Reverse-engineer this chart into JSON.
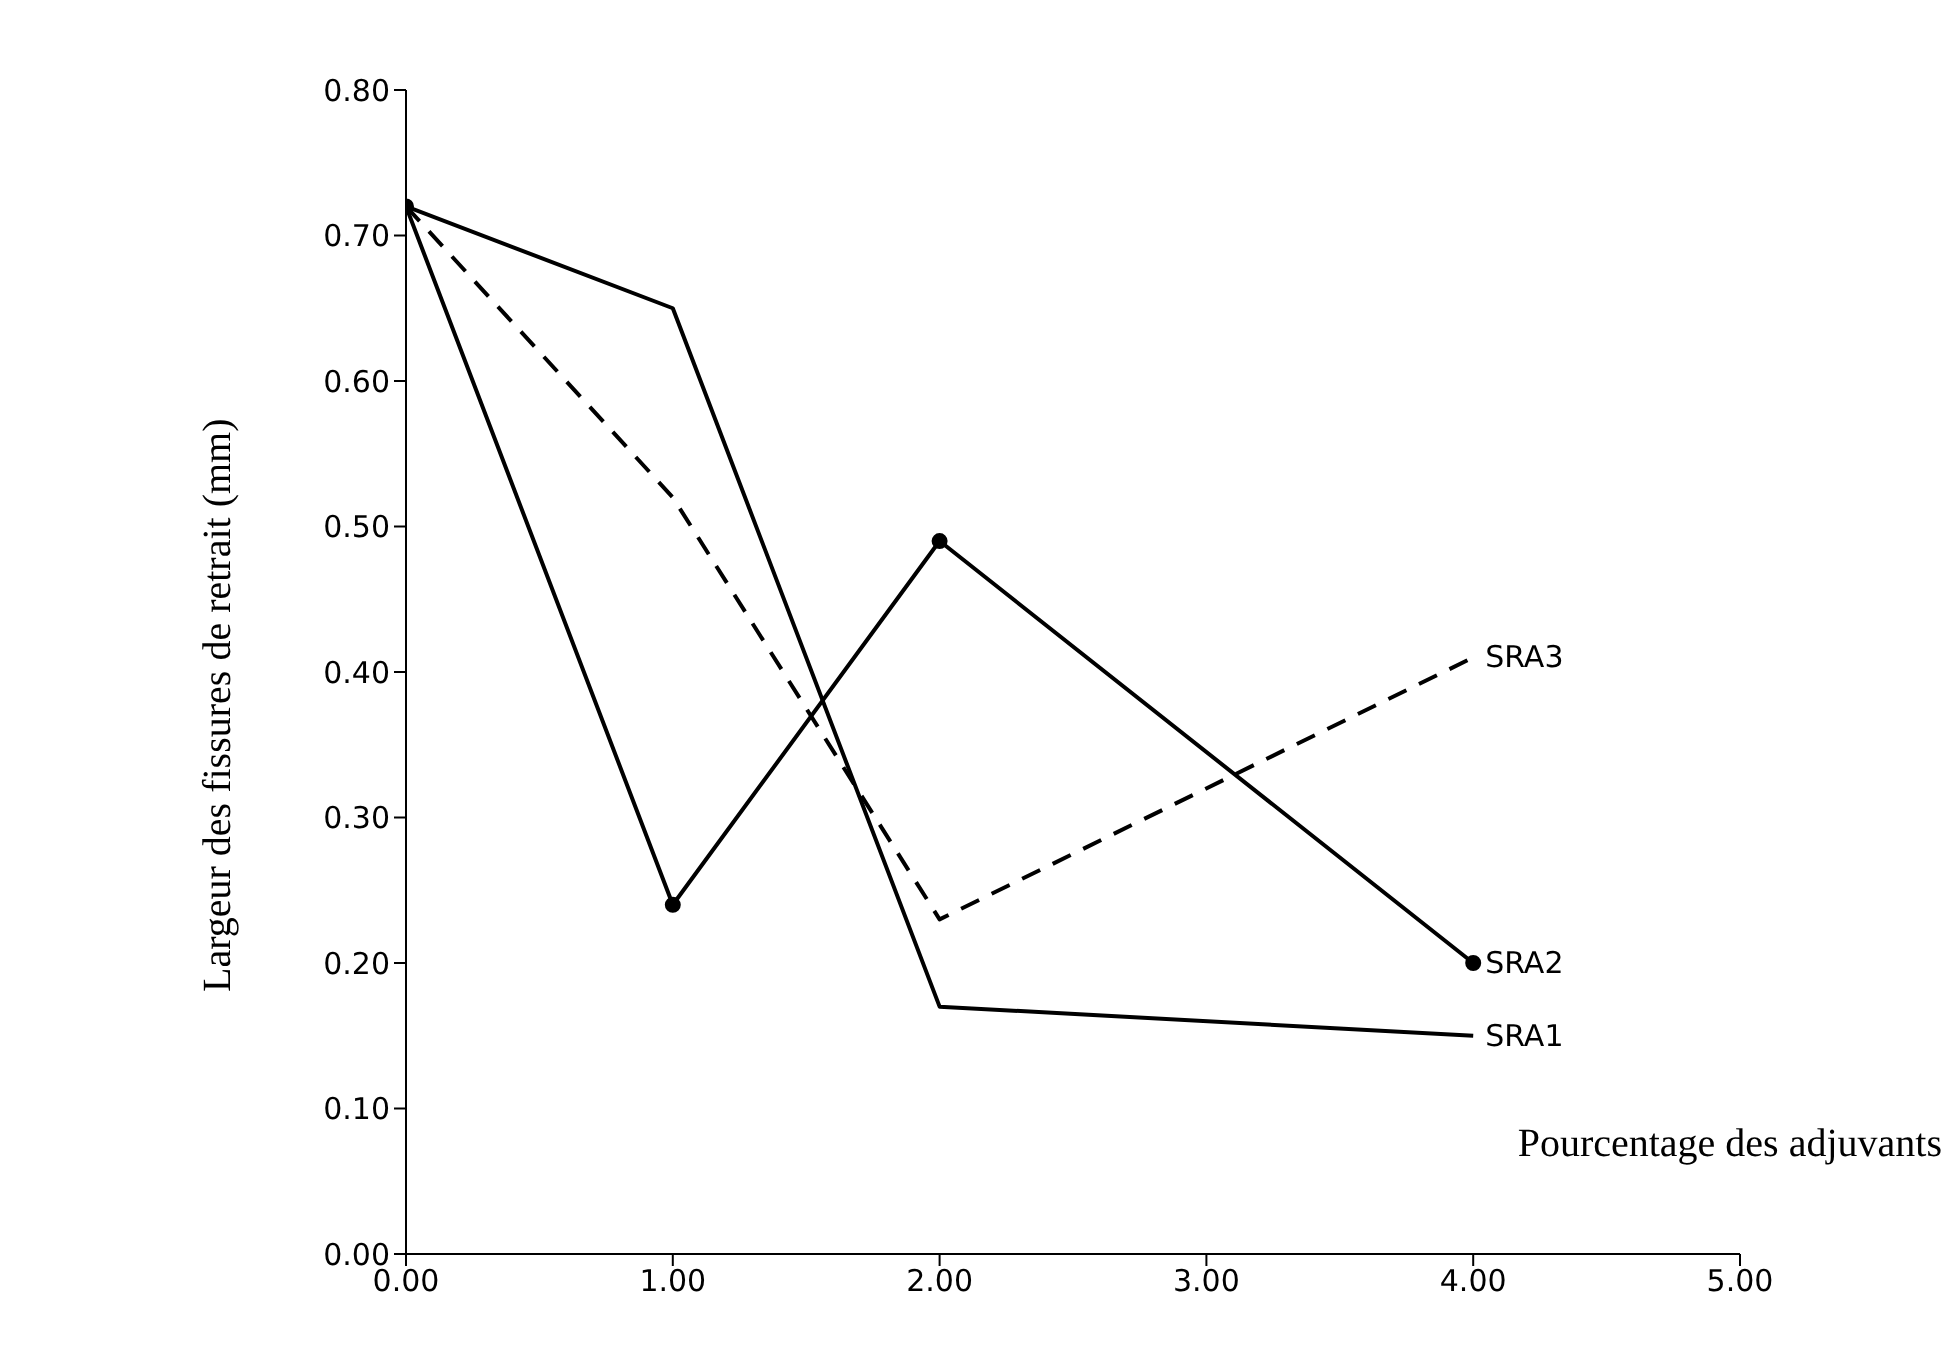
{
  "chart_data": {
    "type": "line",
    "xlabel": "Pourcentage des adjuvants",
    "ylabel": "Largeur des fissures de retrait (mm)",
    "x": [
      0,
      1,
      2,
      4
    ],
    "series": [
      {
        "name": "SRA1",
        "color": "#000000",
        "values": [
          0.72,
          0.65,
          0.17,
          0.15
        ],
        "line_style": "solid",
        "marker": "none"
      },
      {
        "name": "SRA2",
        "color": "#000000",
        "values": [
          0.72,
          0.24,
          0.49,
          0.2
        ],
        "line_style": "solid",
        "marker": "circle"
      },
      {
        "name": "SRA3",
        "color": "#000000",
        "values": [
          0.72,
          0.52,
          0.23,
          0.41
        ],
        "line_style": "dashed",
        "marker": "none"
      }
    ],
    "xlim": [
      0,
      5
    ],
    "xticks": [
      {
        "value": 0,
        "label": "0.00"
      },
      {
        "value": 1,
        "label": "1.00"
      },
      {
        "value": 2,
        "label": "2.00"
      },
      {
        "value": 3,
        "label": "3.00"
      },
      {
        "value": 4,
        "label": "4.00"
      },
      {
        "value": 5,
        "label": "5.00"
      }
    ],
    "ylim": [
      0,
      0.8
    ],
    "yticks": [
      {
        "value": 0,
        "label": "0.00"
      },
      {
        "value": 0.1,
        "label": "0.10"
      },
      {
        "value": 0.2,
        "label": "0.20"
      },
      {
        "value": 0.3,
        "label": "0.30"
      },
      {
        "value": 0.4,
        "label": "0.40"
      },
      {
        "value": 0.5,
        "label": "0.50"
      },
      {
        "value": 0.6,
        "label": "0.60"
      },
      {
        "value": 0.7,
        "label": "0.70"
      },
      {
        "value": 0.8,
        "label": "0.80"
      }
    ],
    "legend": false
  }
}
